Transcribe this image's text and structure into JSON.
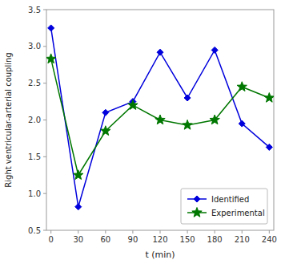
{
  "chart_data": {
    "type": "line",
    "xlabel": "t (min)",
    "ylabel": "Right ventricular-arterial coupling",
    "x": [
      0,
      30,
      60,
      90,
      120,
      150,
      180,
      210,
      240
    ],
    "series": [
      {
        "name": "Identified",
        "color": "#0000dd",
        "marker": "diamond",
        "line_style": "solid",
        "values": [
          3.25,
          0.82,
          2.1,
          2.25,
          2.92,
          2.3,
          2.95,
          1.95,
          1.63
        ]
      },
      {
        "name": "Experimental",
        "color": "#007700",
        "marker": "star",
        "line_style": "solid",
        "values": [
          2.83,
          1.25,
          1.85,
          2.2,
          2.0,
          1.93,
          2.0,
          2.45,
          2.3
        ]
      }
    ],
    "xlim": [
      -5,
      245
    ],
    "ylim": [
      0.5,
      3.5
    ],
    "xticks": [
      0,
      30,
      60,
      90,
      120,
      150,
      180,
      210,
      240
    ],
    "yticks": [
      0.5,
      {
        "value": 1,
        "label": "1.0"
      },
      1.5,
      {
        "value": 2,
        "label": "2.0"
      },
      2.5,
      {
        "value": 3,
        "label": "3.0"
      },
      3.5
    ],
    "grid": false,
    "legend": "lower right"
  }
}
